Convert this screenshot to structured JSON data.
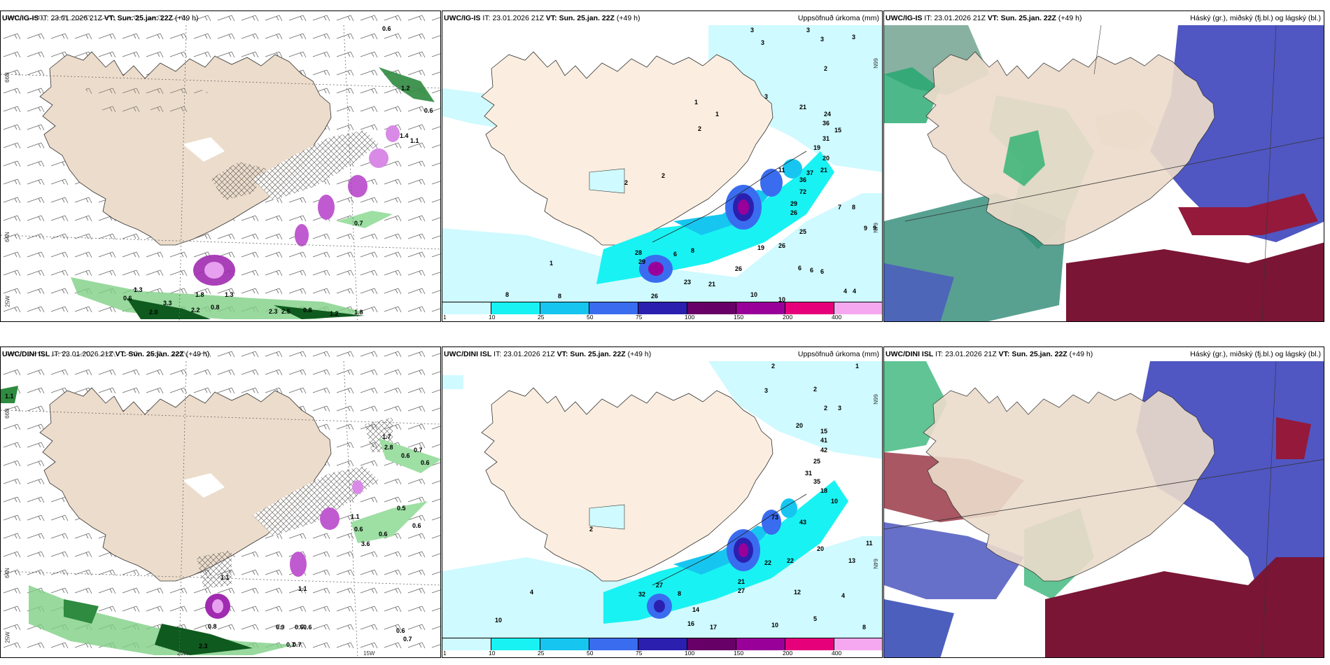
{
  "panels": [
    {
      "model": "UWC/IG-IS",
      "it_label": "IT:",
      "it": "23.01.2026 21Z",
      "vt_label": "VT:",
      "vt": "Sun. 25.jan. 22Z",
      "lead": "(+49 h)",
      "right_title": ""
    },
    {
      "model": "UWC/IG-IS",
      "it_label": "IT:",
      "it": "23.01.2026 21Z",
      "vt_label": "VT:",
      "vt": "Sun. 25.jan. 22Z",
      "lead": "(+49 h)",
      "right_title": "Uppsöfnuð úrkoma (mm)"
    },
    {
      "model": "UWC/IG-IS",
      "it_label": "IT:",
      "it": "23.01.2026 21Z",
      "vt_label": "VT:",
      "vt": "Sun. 25.jan. 22Z",
      "lead": "(+49 h)",
      "right_title": "Háský (gr.), miðský (fj.bl.) og lágský (bl.)"
    },
    {
      "model": "UWC/DINI ISL",
      "it_label": "IT:",
      "it": "23.01.2026 21Z",
      "vt_label": "VT:",
      "vt": "Sun. 25.jan. 22Z",
      "lead": "(+49 h)",
      "right_title": ""
    },
    {
      "model": "UWC/DINI ISL",
      "it_label": "IT:",
      "it": "23.01.2026 21Z",
      "vt_label": "VT:",
      "vt": "Sun. 25.jan. 22Z",
      "lead": "(+49 h)",
      "right_title": "Uppsöfnuð úrkoma (mm)"
    },
    {
      "model": "UWC/DINI ISL",
      "it_label": "IT:",
      "it": "23.01.2026 21Z",
      "vt_label": "VT:",
      "vt": "Sun. 25.jan. 22Z",
      "lead": "(+49 h)",
      "right_title": "Háský (gr.), miðský (fj.bl.) og lágský (bl.)"
    }
  ],
  "colorbar": {
    "ticks": [
      "1",
      "10",
      "25",
      "50",
      "75",
      "100",
      "150",
      "200",
      "400"
    ],
    "colors": [
      "#cffaff",
      "#19f2f2",
      "#17c6f0",
      "#3a6cf0",
      "#2b1fb0",
      "#660066",
      "#990099",
      "#e6007a",
      "#f5a8f0"
    ]
  },
  "axis_labels": {
    "top_left": [
      "66N",
      "64N",
      "25W"
    ],
    "top_right": [
      "66N",
      "64N"
    ],
    "bottom_left": [
      "66N",
      "64N",
      "25W",
      "20W",
      "15W"
    ],
    "bottom_right": [
      "66N",
      "64N"
    ]
  },
  "wind_values_top": [
    "0.6",
    "1.2",
    "0.6",
    "1.4",
    "1.1",
    "0.7",
    "0.6",
    "1.3",
    "3.3",
    "1.8",
    "1.3",
    "2.0",
    "2.2",
    "0.8",
    "2.3",
    "2.5",
    "0.8",
    "1.2",
    "1.8"
  ],
  "wind_values_bottom": [
    "1.1",
    "1.7",
    "2.8",
    "0.6",
    "0.7",
    "0.6",
    "0.5",
    "1.1",
    "0.6",
    "0.6",
    "0.6",
    "3.6",
    "1.1",
    "0.9",
    "0.6",
    "0.6",
    "0.7",
    "0.7",
    "2.3",
    "0.8",
    "1.1",
    "0.6",
    "0.7"
  ],
  "precip_values_top": [
    "3",
    "3",
    "3",
    "3",
    "3",
    "2",
    "3",
    "2",
    "2",
    "1",
    "2",
    "1",
    "21",
    "24",
    "36",
    "15",
    "31",
    "19",
    "20",
    "21",
    "37",
    "36",
    "72",
    "29",
    "26",
    "7",
    "8",
    "9",
    "9",
    "25",
    "26",
    "19",
    "26",
    "28",
    "29",
    "6",
    "8",
    "23",
    "21",
    "26",
    "6",
    "6",
    "6",
    "4",
    "4",
    "10",
    "10",
    "11",
    "1",
    "8",
    "8"
  ],
  "precip_values_bottom": [
    "2",
    "1",
    "3",
    "2",
    "2",
    "3",
    "20",
    "15",
    "41",
    "42",
    "25",
    "31",
    "35",
    "18",
    "10",
    "73",
    "43",
    "20",
    "22",
    "22",
    "12",
    "21",
    "27",
    "32",
    "27",
    "8",
    "14",
    "16",
    "17",
    "10",
    "13",
    "11",
    "5",
    "4",
    "10",
    "8",
    "2",
    "4"
  ]
}
